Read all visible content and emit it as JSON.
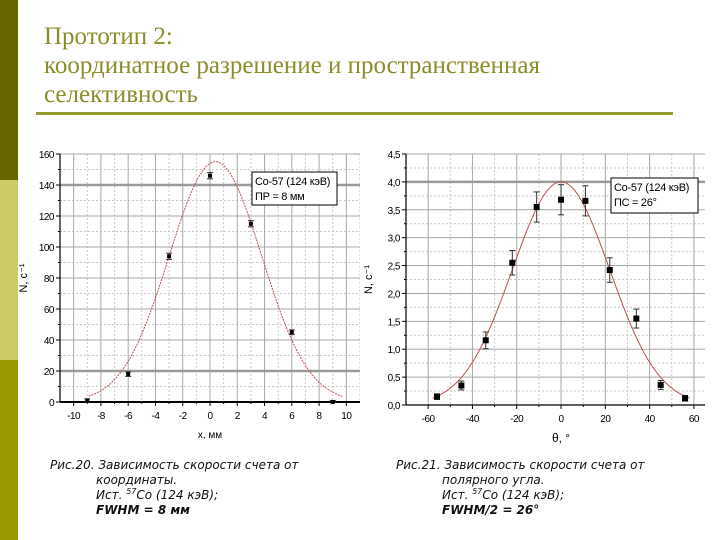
{
  "slide": {
    "title_lines": [
      "Прототип 2:",
      "координатное разрешение и пространственная",
      "селективность"
    ],
    "colors": {
      "sidebar_top": "#666600",
      "sidebar_mid": "#cccc66",
      "sidebar_bottom": "#999900",
      "title": "#8c8c2a",
      "rule": "#9a9a33",
      "fit_curve": "#c0504d"
    }
  },
  "captions": {
    "left": {
      "line1": "Рис.20. Зависимость скорости счета от",
      "line2": "координаты.",
      "line3_prefix": "Ист. ",
      "line3_sup": "57",
      "line3_suffix": "Co (124 кэВ);",
      "line4": "FWHM = 8 мм"
    },
    "right": {
      "line1": "Рис.21. Зависимость скорости счета от",
      "line2": "полярного угла.",
      "line3_prefix": "Ист. ",
      "line3_sup": "57",
      "line3_suffix": "Co (124 кэВ);",
      "line4": "FWHM/2 = 26°"
    }
  },
  "chart_data": [
    {
      "type": "scatter",
      "title": "",
      "xlabel": "x, мм",
      "ylabel": "N, c⁻¹",
      "xlim": [
        -11,
        11
      ],
      "ylim": [
        0,
        160
      ],
      "xticks": [
        -10,
        -8,
        -6,
        -4,
        -2,
        0,
        2,
        4,
        6,
        8,
        10
      ],
      "yticks": [
        0,
        20,
        40,
        60,
        80,
        100,
        120,
        140,
        160
      ],
      "ytick_labels": [
        "0",
        "20",
        "40",
        "60",
        "80",
        "100",
        "120",
        "140",
        "160"
      ],
      "grid": true,
      "legend": {
        "position": "upper right",
        "entries": [
          "Co-57 (124 кэВ)",
          "ПР = 8 мм"
        ]
      },
      "series": [
        {
          "name": "measured",
          "x": [
            -9,
            -6,
            -3,
            0,
            3,
            6,
            9
          ],
          "y": [
            1,
            18,
            94,
            146,
            115,
            45,
            0
          ],
          "err": [
            1,
            1.5,
            2,
            2,
            2,
            1.5,
            1
          ]
        },
        {
          "name": "gaussian fit",
          "type": "line",
          "amplitude": 155,
          "center": 0.4,
          "sigma": 3.4
        }
      ]
    },
    {
      "type": "scatter",
      "title": "",
      "xlabel": "θ, °",
      "ylabel": "N, c⁻¹",
      "xlim": [
        -70,
        65
      ],
      "ylim": [
        0,
        4.5
      ],
      "xticks": [
        -60,
        -40,
        -20,
        0,
        20,
        40,
        60
      ],
      "yticks": [
        0,
        0.5,
        1,
        1.5,
        2,
        2.5,
        3,
        3.5,
        4,
        4.5
      ],
      "ytick_labels": [
        "0,0",
        "0,5",
        "1,0",
        "1,5",
        "2,0",
        "2,5",
        "3,0",
        "3,5",
        "4,0",
        "4,5"
      ],
      "grid": true,
      "legend": {
        "position": "upper right",
        "entries": [
          "Co-57 (124 кэВ)",
          "ПС = 26°"
        ]
      },
      "series": [
        {
          "name": "measured",
          "x": [
            -56,
            -45,
            -34,
            -22,
            -11,
            0,
            11,
            22,
            34,
            45,
            56
          ],
          "y": [
            0.15,
            0.35,
            1.16,
            2.55,
            3.55,
            3.68,
            3.66,
            2.42,
            1.55,
            0.36,
            0.12
          ],
          "err": [
            0.05,
            0.08,
            0.15,
            0.22,
            0.27,
            0.27,
            0.27,
            0.22,
            0.17,
            0.08,
            0.05
          ]
        },
        {
          "name": "gaussian fit",
          "type": "line",
          "amplitude": 4.0,
          "center": 0,
          "sigma": 22
        }
      ]
    }
  ]
}
